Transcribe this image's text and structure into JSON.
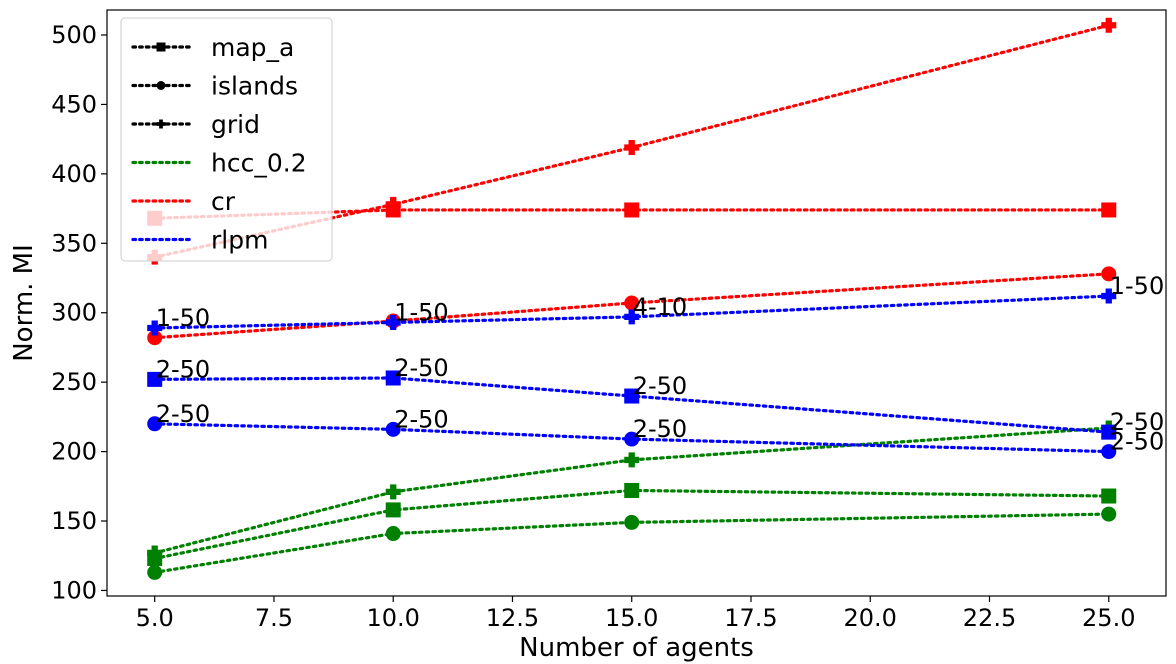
{
  "chart_data": {
    "type": "line",
    "title": "",
    "xlabel": "Number of agents",
    "ylabel": "Norm. MI",
    "xlim": [
      4.0,
      26.2
    ],
    "ylim": [
      96,
      518
    ],
    "xticks": [
      5.0,
      7.5,
      10.0,
      12.5,
      15.0,
      17.5,
      20.0,
      22.5,
      25.0
    ],
    "xtick_labels": [
      "5.0",
      "7.5",
      "10.0",
      "12.5",
      "15.0",
      "17.5",
      "20.0",
      "22.5",
      "25.0"
    ],
    "yticks": [
      100,
      150,
      200,
      250,
      300,
      350,
      400,
      450,
      500
    ],
    "ytick_labels": [
      "100",
      "150",
      "200",
      "250",
      "300",
      "350",
      "400",
      "450",
      "500"
    ],
    "grid": false,
    "legend_position": "top-left",
    "x": [
      5,
      10,
      15,
      25
    ],
    "series": [
      {
        "method": "hcc_0.2",
        "map": "map_a",
        "color": "#008000",
        "marker": "square",
        "values": [
          123,
          158,
          172,
          168
        ]
      },
      {
        "method": "hcc_0.2",
        "map": "islands",
        "color": "#008000",
        "marker": "circle",
        "values": [
          113,
          141,
          149,
          155
        ]
      },
      {
        "method": "hcc_0.2",
        "map": "grid",
        "color": "#008000",
        "marker": "plus",
        "values": [
          127,
          171,
          194,
          217
        ]
      },
      {
        "method": "cr",
        "map": "map_a",
        "color": "#ff0000",
        "marker": "square",
        "values": [
          368,
          374,
          374,
          374
        ]
      },
      {
        "method": "cr",
        "map": "islands",
        "color": "#ff0000",
        "marker": "circle",
        "values": [
          282,
          294,
          307,
          328
        ]
      },
      {
        "method": "cr",
        "map": "grid",
        "color": "#ff0000",
        "marker": "plus",
        "values": [
          340,
          378,
          419,
          507
        ]
      },
      {
        "method": "rlpm",
        "map": "map_a",
        "color": "#0000ff",
        "marker": "square",
        "values": [
          252,
          253,
          240,
          214
        ]
      },
      {
        "method": "rlpm",
        "map": "islands",
        "color": "#0000ff",
        "marker": "circle",
        "values": [
          220,
          216,
          209,
          200
        ]
      },
      {
        "method": "rlpm",
        "map": "grid",
        "color": "#0000ff",
        "marker": "plus",
        "values": [
          289,
          293,
          297,
          312
        ]
      }
    ],
    "annotations": [
      {
        "text": "1-50",
        "x": 5,
        "y": 289
      },
      {
        "text": "1-50",
        "x": 10,
        "y": 293
      },
      {
        "text": "4-10",
        "x": 15,
        "y": 297
      },
      {
        "text": "1-50",
        "x": 25,
        "y": 312
      },
      {
        "text": "2-50",
        "x": 5,
        "y": 252
      },
      {
        "text": "2-50",
        "x": 10,
        "y": 253
      },
      {
        "text": "2-50",
        "x": 15,
        "y": 240
      },
      {
        "text": "2-50",
        "x": 25,
        "y": 214
      },
      {
        "text": "2-50",
        "x": 5,
        "y": 220
      },
      {
        "text": "2-50",
        "x": 10,
        "y": 216
      },
      {
        "text": "2-50",
        "x": 15,
        "y": 209
      },
      {
        "text": "2-50",
        "x": 25,
        "y": 200
      }
    ],
    "legend": [
      {
        "label": "map_a",
        "color": "#000000",
        "marker": "square"
      },
      {
        "label": "islands",
        "color": "#000000",
        "marker": "circle"
      },
      {
        "label": "grid",
        "color": "#000000",
        "marker": "plus"
      },
      {
        "label": "hcc_0.2",
        "color": "#008000",
        "marker": "none"
      },
      {
        "label": "cr",
        "color": "#ff0000",
        "marker": "none"
      },
      {
        "label": "rlpm",
        "color": "#0000ff",
        "marker": "none"
      }
    ]
  }
}
